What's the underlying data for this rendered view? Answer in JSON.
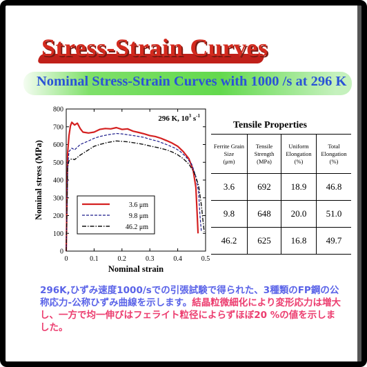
{
  "slide": {
    "title": "Stress-Strain Curves",
    "subtitle": "Nominal Stress-Strain Curves with 1000 /s at 296 K"
  },
  "chart_data": {
    "type": "line",
    "annotation": "296 K, 10",
    "annotation_sup": "3",
    "annotation_unit": " s",
    "annotation_unit_sup": "-1",
    "xlabel": "Nominal strain",
    "ylabel": "Nominal stress (MPa)",
    "xlim": [
      0,
      0.5
    ],
    "ylim": [
      0,
      800
    ],
    "xticks": [
      0,
      0.1,
      0.2,
      0.3,
      0.4,
      0.5
    ],
    "xtick_labels": [
      "0",
      "0.1",
      "0.2",
      "0.3",
      "0.4",
      "0.5"
    ],
    "yticks": [
      0,
      100,
      200,
      300,
      400,
      500,
      600,
      700,
      800
    ],
    "ytick_labels": [
      "0",
      "100",
      "200",
      "300",
      "400",
      "500",
      "600",
      "700",
      "800"
    ],
    "grid": false,
    "legend_position": "bottom-left",
    "series": [
      {
        "name": "3.6 μm",
        "color": "#d42020",
        "style": "solid",
        "points": [
          [
            0,
            0
          ],
          [
            0.005,
            550
          ],
          [
            0.01,
            650
          ],
          [
            0.015,
            705
          ],
          [
            0.02,
            725
          ],
          [
            0.03,
            710
          ],
          [
            0.04,
            720
          ],
          [
            0.05,
            690
          ],
          [
            0.06,
            670
          ],
          [
            0.08,
            665
          ],
          [
            0.1,
            670
          ],
          [
            0.12,
            685
          ],
          [
            0.14,
            690
          ],
          [
            0.16,
            688
          ],
          [
            0.18,
            695
          ],
          [
            0.2,
            685
          ],
          [
            0.22,
            688
          ],
          [
            0.24,
            675
          ],
          [
            0.26,
            668
          ],
          [
            0.28,
            660
          ],
          [
            0.3,
            650
          ],
          [
            0.32,
            645
          ],
          [
            0.34,
            635
          ],
          [
            0.36,
            622
          ],
          [
            0.38,
            608
          ],
          [
            0.4,
            590
          ],
          [
            0.42,
            560
          ],
          [
            0.44,
            520
          ],
          [
            0.455,
            460
          ],
          [
            0.465,
            360
          ],
          [
            0.47,
            200
          ],
          [
            0.473,
            100
          ]
        ]
      },
      {
        "name": "9.8 μm",
        "color": "#1a1a8a",
        "style": "dashed",
        "points": [
          [
            0,
            0
          ],
          [
            0.005,
            480
          ],
          [
            0.01,
            560
          ],
          [
            0.02,
            580
          ],
          [
            0.03,
            570
          ],
          [
            0.05,
            600
          ],
          [
            0.08,
            620
          ],
          [
            0.1,
            635
          ],
          [
            0.12,
            645
          ],
          [
            0.15,
            655
          ],
          [
            0.18,
            662
          ],
          [
            0.2,
            660
          ],
          [
            0.22,
            655
          ],
          [
            0.25,
            648
          ],
          [
            0.28,
            640
          ],
          [
            0.3,
            630
          ],
          [
            0.33,
            618
          ],
          [
            0.36,
            600
          ],
          [
            0.39,
            580
          ],
          [
            0.41,
            560
          ],
          [
            0.43,
            530
          ],
          [
            0.45,
            490
          ],
          [
            0.465,
            420
          ],
          [
            0.475,
            330
          ],
          [
            0.48,
            200
          ],
          [
            0.485,
            110
          ]
        ]
      },
      {
        "name": "46.2 μm",
        "color": "#111111",
        "style": "dashdot",
        "points": [
          [
            0,
            0
          ],
          [
            0.005,
            470
          ],
          [
            0.01,
            510
          ],
          [
            0.02,
            520
          ],
          [
            0.03,
            515
          ],
          [
            0.05,
            540
          ],
          [
            0.08,
            570
          ],
          [
            0.1,
            590
          ],
          [
            0.12,
            600
          ],
          [
            0.15,
            612
          ],
          [
            0.18,
            620
          ],
          [
            0.2,
            618
          ],
          [
            0.22,
            615
          ],
          [
            0.25,
            608
          ],
          [
            0.28,
            600
          ],
          [
            0.3,
            592
          ],
          [
            0.33,
            582
          ],
          [
            0.36,
            570
          ],
          [
            0.38,
            558
          ],
          [
            0.4,
            542
          ],
          [
            0.42,
            520
          ],
          [
            0.44,
            490
          ],
          [
            0.46,
            440
          ],
          [
            0.475,
            370
          ],
          [
            0.485,
            260
          ],
          [
            0.49,
            180
          ],
          [
            0.495,
            110
          ]
        ]
      }
    ]
  },
  "table": {
    "title": "Tensile Properties",
    "headers": [
      [
        "Ferrite Grain",
        "Size",
        "(μm)"
      ],
      [
        "Tensile",
        "Strength",
        "(MPa)"
      ],
      [
        "Uniform",
        "Elongation",
        "(%)"
      ],
      [
        "Total",
        "Elongation",
        "(%)"
      ]
    ],
    "rows": [
      [
        "3.6",
        "692",
        "18.9",
        "46.8"
      ],
      [
        "9.8",
        "648",
        "20.0",
        "51.0"
      ],
      [
        "46.2",
        "625",
        "16.8",
        "49.7"
      ]
    ]
  },
  "caption": {
    "part1": "296K,ひずみ速度1000/sでの引張試験で得られた、3種類のFP鋼の公称応力-公称ひずみ曲線を示します。",
    "part2": "結晶粒微細化により変形応力は増大し、一方で均一伸びはフェライト粒径によらずほぼ20 %の値を示しました。",
    "color_blue": "#5a63e8",
    "color_red": "#ec3d6f"
  }
}
